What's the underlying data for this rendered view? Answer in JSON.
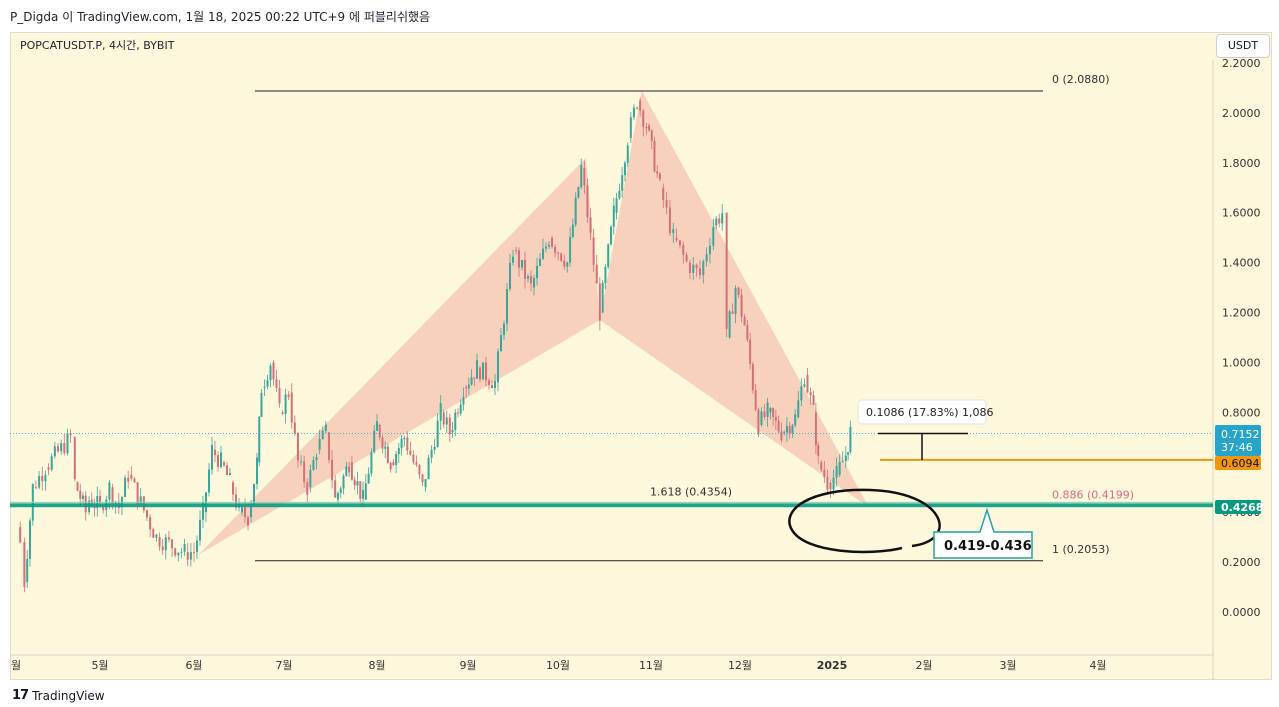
{
  "header": {
    "text": "P_Digda 이 TradingView.com, 1월 18, 2025 00:22 UTC+9 에 퍼블리쉬했음"
  },
  "symbol": "POPCATUSDT.P, 4시간, BYBIT",
  "currency": "USDT",
  "footer": {
    "brand": "TradingView",
    "logo_glyph": "17"
  },
  "colors": {
    "background": "#fdf7dc",
    "pattern_fill": "#f6c4b3",
    "bull": "#3aa69b",
    "bear": "#d36f78",
    "support_line": "#089981",
    "orange_line": "#f0960c",
    "current_price": "#26a4c9",
    "fib_pink": "#e06a8a"
  },
  "chart_data": {
    "type": "candlestick",
    "ylim": [
      -0.2,
      2.2
    ],
    "y_ticks": [
      "2.2000",
      "2.0000",
      "1.8000",
      "1.6000",
      "1.4000",
      "1.2000",
      "1.0000",
      "0.8000",
      "0.6000",
      "0.4000",
      "0.2000",
      "0.0000"
    ],
    "x_ticks": [
      "월",
      "5월",
      "6월",
      "7월",
      "8월",
      "9월",
      "10월",
      "11월",
      "12월",
      "2025",
      "2월",
      "3월",
      "4월"
    ],
    "price_path": [
      [
        0.3,
        0.34
      ],
      [
        0.05,
        0.28
      ],
      [
        0.1,
        0.12
      ],
      [
        0.2,
        0.5
      ],
      [
        0.35,
        0.58
      ],
      [
        0.65,
        0.7
      ],
      [
        0.7,
        0.52
      ],
      [
        0.83,
        0.4
      ],
      [
        0.87,
        0.45
      ],
      [
        1.0,
        0.42
      ],
      [
        1.1,
        0.5
      ],
      [
        1.2,
        0.42
      ],
      [
        1.3,
        0.55
      ],
      [
        1.5,
        0.38
      ],
      [
        1.6,
        0.3
      ],
      [
        1.9,
        0.24
      ],
      [
        2.0,
        0.24
      ],
      [
        2.1,
        0.4
      ],
      [
        2.2,
        0.65
      ],
      [
        2.3,
        0.6
      ],
      [
        2.4,
        0.52
      ],
      [
        2.5,
        0.4
      ],
      [
        2.6,
        0.38
      ],
      [
        2.7,
        0.6
      ],
      [
        2.75,
        0.9
      ],
      [
        2.85,
        1.0
      ],
      [
        2.95,
        0.8
      ],
      [
        3.05,
        0.88
      ],
      [
        3.15,
        0.6
      ],
      [
        3.25,
        0.5
      ],
      [
        3.35,
        0.65
      ],
      [
        3.45,
        0.72
      ],
      [
        3.55,
        0.45
      ],
      [
        3.7,
        0.6
      ],
      [
        3.85,
        0.45
      ],
      [
        4.0,
        0.75
      ],
      [
        4.15,
        0.6
      ],
      [
        4.3,
        0.7
      ],
      [
        4.5,
        0.5
      ],
      [
        4.7,
        0.8
      ],
      [
        4.8,
        0.72
      ],
      [
        4.95,
        0.9
      ],
      [
        5.1,
        0.98
      ],
      [
        5.3,
        0.92
      ],
      [
        5.5,
        1.45
      ],
      [
        5.7,
        1.3
      ],
      [
        5.9,
        1.5
      ],
      [
        6.1,
        1.4
      ],
      [
        6.25,
        1.78
      ],
      [
        6.35,
        1.5
      ],
      [
        6.45,
        1.2
      ],
      [
        6.6,
        1.6
      ],
      [
        6.75,
        1.9
      ],
      [
        6.85,
        2.05
      ],
      [
        6.95,
        1.95
      ],
      [
        7.1,
        1.7
      ],
      [
        7.25,
        1.5
      ],
      [
        7.4,
        1.4
      ],
      [
        7.55,
        1.35
      ],
      [
        7.7,
        1.55
      ],
      [
        7.8,
        1.6
      ],
      [
        7.85,
        1.1
      ],
      [
        7.95,
        1.3
      ],
      [
        8.05,
        1.15
      ],
      [
        8.2,
        0.75
      ],
      [
        8.3,
        0.8
      ],
      [
        8.45,
        0.72
      ],
      [
        8.6,
        0.78
      ],
      [
        8.7,
        0.95
      ],
      [
        8.8,
        0.8
      ],
      [
        8.85,
        0.6
      ],
      [
        8.95,
        0.52
      ],
      [
        9.05,
        0.55
      ],
      [
        9.15,
        0.63
      ],
      [
        9.2,
        0.72
      ]
    ],
    "fib_levels": [
      {
        "label": "0 (2.0880)",
        "value": 2.088
      },
      {
        "label": "1 (0.2053)",
        "value": 0.2053
      },
      {
        "label": "1.618 (0.4354)",
        "value": 0.4354
      },
      {
        "label": "0.886 (0.4199)",
        "value": 0.4199
      }
    ],
    "price_labels": [
      {
        "label": "0.7152",
        "sub": "37:46",
        "value": 0.7152
      },
      {
        "label": "0.6094",
        "value": 0.6094
      },
      {
        "label": "0.4268",
        "value": 0.4268
      }
    ],
    "measure_tooltip": "0.1086 (17.83%) 1,086",
    "zone_label": "0.419-0.436",
    "pattern_points": [
      {
        "t": 2.05,
        "p": 0.23
      },
      {
        "t": 6.3,
        "p": 1.82
      },
      {
        "t": 6.45,
        "p": 1.17
      },
      {
        "t": 6.9,
        "p": 2.09
      },
      {
        "t": 9.4,
        "p": 0.42
      }
    ]
  }
}
